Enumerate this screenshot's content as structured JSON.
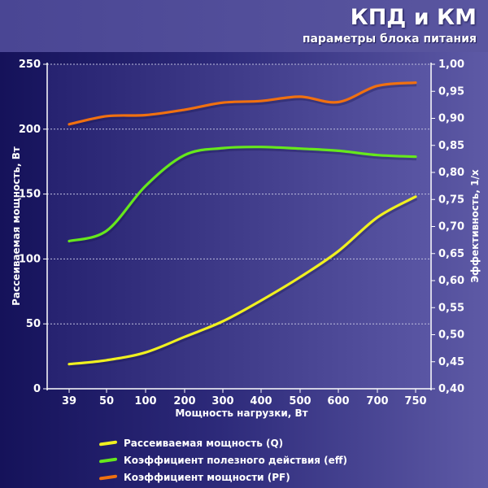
{
  "header": {
    "title": "КПД и КМ",
    "subtitle": "параметры блока питания"
  },
  "colors": {
    "q": "#f0f020",
    "eff": "#66e81c",
    "pf": "#f07010",
    "grid": "#bfbfdf"
  },
  "chart_data": {
    "type": "line",
    "xlabel": "Мощность нагрузки, Вт",
    "ylabel_left": "Рассеиваемая мощность, Вт",
    "ylabel_right": "Эффективность, 1/х",
    "categories": [
      "39",
      "50",
      "100",
      "200",
      "300",
      "400",
      "500",
      "600",
      "700",
      "750"
    ],
    "y_left_range": [
      0,
      250
    ],
    "y_left_ticks": [
      "0",
      "50",
      "100",
      "150",
      "200",
      "250"
    ],
    "y_right_range": [
      0.4,
      1.0
    ],
    "y_right_ticks": [
      "0,40",
      "0,45",
      "0,50",
      "0,55",
      "0,60",
      "0,65",
      "0,70",
      "0,75",
      "0,80",
      "0,85",
      "0,90",
      "0,95",
      "1,00"
    ],
    "series": [
      {
        "name": "Рассеиваемая мощность (Q)",
        "axis": "left",
        "color": "#f0f020",
        "values": [
          19,
          22,
          28,
          40,
          52,
          68,
          86,
          106,
          132,
          148
        ]
      },
      {
        "name": "Коэффициент полезного действия (eff)",
        "axis": "right",
        "color": "#66e81c",
        "values": [
          0.673,
          0.692,
          0.775,
          0.832,
          0.845,
          0.847,
          0.844,
          0.84,
          0.832,
          0.829
        ]
      },
      {
        "name": "Коэффициент мощности (PF)",
        "axis": "right",
        "color": "#f07010",
        "values": [
          0.889,
          0.904,
          0.906,
          0.916,
          0.929,
          0.932,
          0.94,
          0.93,
          0.96,
          0.966
        ]
      }
    ]
  }
}
